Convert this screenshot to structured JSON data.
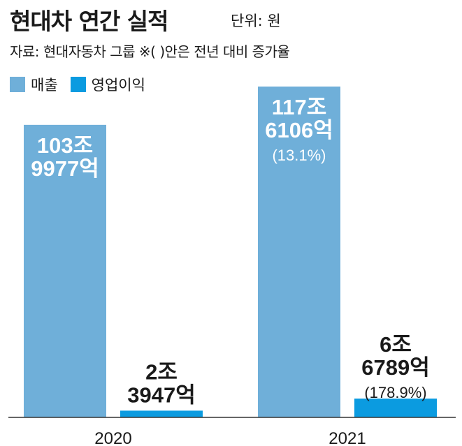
{
  "header": {
    "title": "현대차 연간 실적",
    "unit": "단위: 원",
    "source": "자료: 현대자동차 그룹  ※( )안은 전년 대비 증가율"
  },
  "legend": [
    {
      "name": "매출",
      "color": "#6fafd9"
    },
    {
      "name": "영업이익",
      "color": "#0b9be0"
    }
  ],
  "chart_data": {
    "type": "bar",
    "categories": [
      "2020",
      "2021"
    ],
    "series": [
      {
        "name": "매출",
        "color": "#6fafd9",
        "values": [
          103.9977,
          117.6106
        ],
        "labels": [
          [
            "103조",
            "9977억"
          ],
          [
            "117조",
            "6106억",
            "(13.1%)"
          ]
        ]
      },
      {
        "name": "영업이익",
        "color": "#0b9be0",
        "values": [
          2.3947,
          6.6789
        ],
        "labels": [
          [
            "2조",
            "3947억"
          ],
          [
            "6조",
            "6789억",
            "(178.9%)"
          ]
        ]
      }
    ],
    "unit": "원",
    "ylim": [
      0,
      117.6106
    ],
    "grid": false
  }
}
